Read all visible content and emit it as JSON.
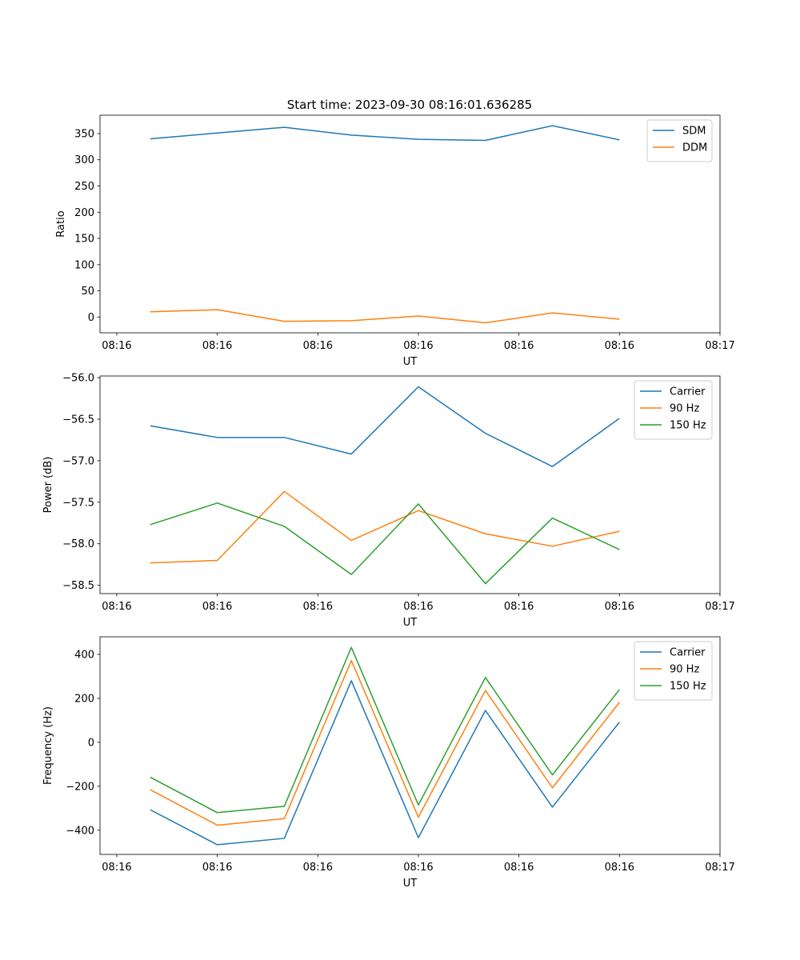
{
  "figure": {
    "title": "Start time: 2023-09-30 08:16:01.636285"
  },
  "chart_data": [
    {
      "type": "line",
      "xlabel": "UT",
      "ylabel": "Ratio",
      "x": [
        0,
        1,
        2,
        3,
        4,
        5,
        6,
        7
      ],
      "xlim": [
        -0.75,
        8.5
      ],
      "ylim": [
        -30,
        385
      ],
      "xticks": [
        -0.5,
        1,
        2.5,
        4,
        5.5,
        7,
        8.5
      ],
      "xtick_labels": [
        "08:16",
        "08:16",
        "08:16",
        "08:16",
        "08:16",
        "08:16",
        "08:17"
      ],
      "yticks": [
        0,
        50,
        100,
        150,
        200,
        250,
        300,
        350
      ],
      "ytick_labels": [
        "0",
        "50",
        "100",
        "150",
        "200",
        "250",
        "300",
        "350"
      ],
      "legend_position": "top-right",
      "series": [
        {
          "name": "SDM",
          "color": "#1f77b4",
          "values": [
            340,
            351,
            362,
            347,
            339,
            337,
            365,
            338
          ]
        },
        {
          "name": "DDM",
          "color": "#ff7f0e",
          "values": [
            10,
            14,
            -8,
            -7,
            2,
            -11,
            8,
            -4
          ]
        }
      ]
    },
    {
      "type": "line",
      "xlabel": "UT",
      "ylabel": "Power (dB)",
      "x": [
        0,
        1,
        2,
        3,
        4,
        5,
        6,
        7
      ],
      "xlim": [
        -0.75,
        8.5
      ],
      "ylim": [
        -58.6,
        -55.98
      ],
      "xticks": [
        -0.5,
        1,
        2.5,
        4,
        5.5,
        7,
        8.5
      ],
      "xtick_labels": [
        "08:16",
        "08:16",
        "08:16",
        "08:16",
        "08:16",
        "08:16",
        "08:17"
      ],
      "yticks": [
        -58.5,
        -58.0,
        -57.5,
        -57.0,
        -56.5,
        -56.0
      ],
      "ytick_labels": [
        "−58.5",
        "−58.0",
        "−57.5",
        "−57.0",
        "−56.5",
        "−56.0"
      ],
      "legend_position": "top-right",
      "series": [
        {
          "name": "Carrier",
          "color": "#1f77b4",
          "values": [
            -56.58,
            -56.72,
            -56.72,
            -56.92,
            -56.11,
            -56.67,
            -57.07,
            -56.49
          ]
        },
        {
          "name": "90 Hz",
          "color": "#ff7f0e",
          "values": [
            -58.23,
            -58.2,
            -57.37,
            -57.96,
            -57.6,
            -57.88,
            -58.03,
            -57.85
          ]
        },
        {
          "name": "150 Hz",
          "color": "#2ca02c",
          "values": [
            -57.77,
            -57.51,
            -57.79,
            -58.37,
            -57.52,
            -58.48,
            -57.69,
            -58.07
          ]
        }
      ]
    },
    {
      "type": "line",
      "xlabel": "UT",
      "ylabel": "Frequency (Hz)",
      "x": [
        0,
        1,
        2,
        3,
        4,
        5,
        6,
        7
      ],
      "xlim": [
        -0.75,
        8.5
      ],
      "ylim": [
        -510,
        480
      ],
      "xticks": [
        -0.5,
        1,
        2.5,
        4,
        5.5,
        7,
        8.5
      ],
      "xtick_labels": [
        "08:16",
        "08:16",
        "08:16",
        "08:16",
        "08:16",
        "08:16",
        "08:17"
      ],
      "yticks": [
        -400,
        -200,
        0,
        200,
        400
      ],
      "ytick_labels": [
        "−400",
        "−200",
        "0",
        "200",
        "400"
      ],
      "legend_position": "top-right",
      "series": [
        {
          "name": "Carrier",
          "color": "#1f77b4",
          "values": [
            -307,
            -466,
            -437,
            280,
            -434,
            145,
            -295,
            92
          ]
        },
        {
          "name": "90 Hz",
          "color": "#ff7f0e",
          "values": [
            -216,
            -377,
            -347,
            372,
            -341,
            236,
            -207,
            182
          ]
        },
        {
          "name": "150 Hz",
          "color": "#2ca02c",
          "values": [
            -159,
            -320,
            -291,
            432,
            -285,
            295,
            -148,
            240
          ]
        }
      ]
    }
  ]
}
